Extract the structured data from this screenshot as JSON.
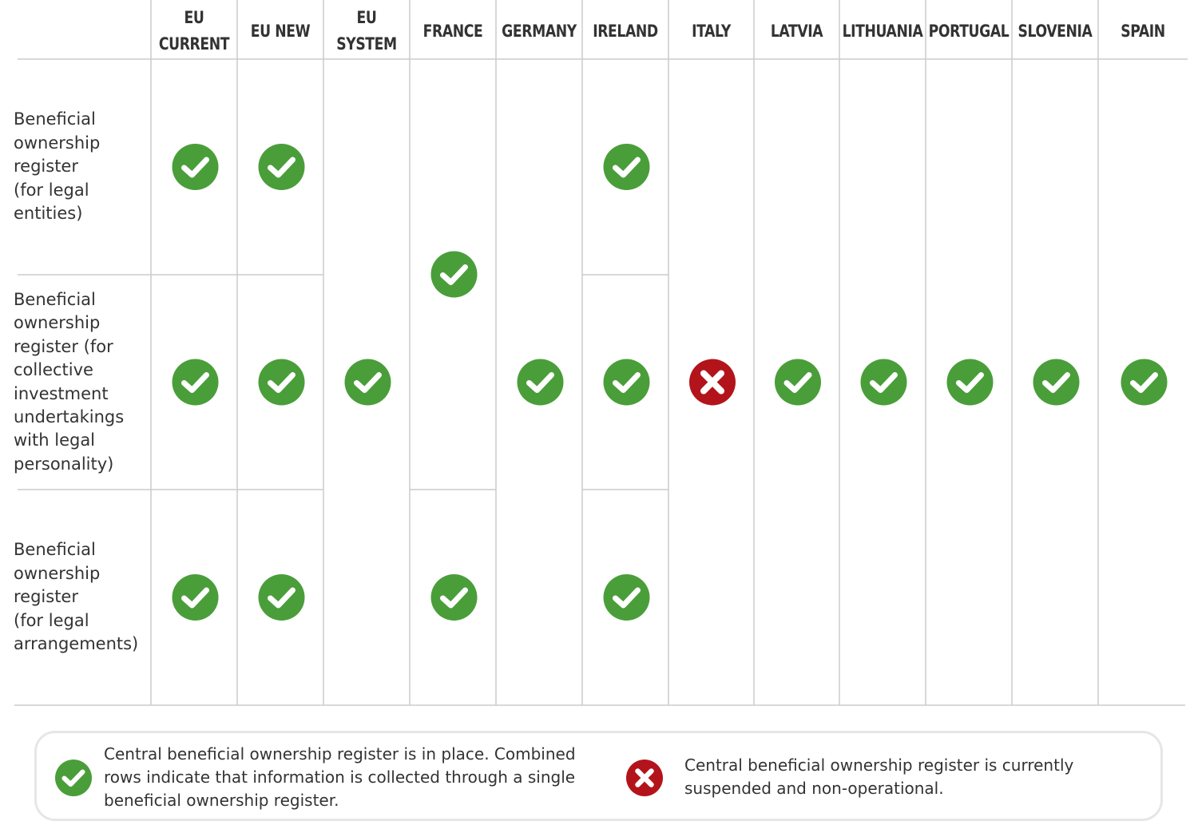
{
  "columns": [
    {
      "key": "eu_current",
      "label": "EU\nCURRENT"
    },
    {
      "key": "eu_new",
      "label": "EU NEW"
    },
    {
      "key": "eu_system",
      "label": "EU\nSYSTEM"
    },
    {
      "key": "france",
      "label": "FRANCE"
    },
    {
      "key": "germany",
      "label": "GERMANY"
    },
    {
      "key": "ireland",
      "label": "IRELAND"
    },
    {
      "key": "italy",
      "label": "ITALY"
    },
    {
      "key": "latvia",
      "label": "LATVIA"
    },
    {
      "key": "lithuania",
      "label": "LITHUANIA"
    },
    {
      "key": "portugal",
      "label": "PORTUGAL"
    },
    {
      "key": "slovenia",
      "label": "SLOVENIA"
    },
    {
      "key": "spain",
      "label": "SPAIN"
    }
  ],
  "rows": [
    {
      "key": "legal_entities",
      "label": "Beneficial\nownership\nregister\n(for legal\nentities)"
    },
    {
      "key": "collective_investment",
      "label": "Beneficial\nownership\nregister (for\ncollective\ninvestment\nundertakings\nwith legal\npersonality)"
    },
    {
      "key": "legal_arrangements",
      "label": "Beneficial\nownership\nregister\n(for legal\narrangements)"
    }
  ],
  "cells": [
    {
      "column": "eu_current",
      "rows": [
        "legal_entities"
      ],
      "status": "in-place"
    },
    {
      "column": "eu_current",
      "rows": [
        "collective_investment"
      ],
      "status": "in-place"
    },
    {
      "column": "eu_current",
      "rows": [
        "legal_arrangements"
      ],
      "status": "in-place"
    },
    {
      "column": "eu_new",
      "rows": [
        "legal_entities"
      ],
      "status": "in-place"
    },
    {
      "column": "eu_new",
      "rows": [
        "collective_investment"
      ],
      "status": "in-place"
    },
    {
      "column": "eu_new",
      "rows": [
        "legal_arrangements"
      ],
      "status": "in-place"
    },
    {
      "column": "eu_system",
      "rows": [
        "legal_entities",
        "collective_investment",
        "legal_arrangements"
      ],
      "status": "in-place"
    },
    {
      "column": "france",
      "rows": [
        "legal_entities",
        "collective_investment"
      ],
      "status": "in-place"
    },
    {
      "column": "france",
      "rows": [
        "legal_arrangements"
      ],
      "status": "in-place"
    },
    {
      "column": "germany",
      "rows": [
        "legal_entities",
        "collective_investment",
        "legal_arrangements"
      ],
      "status": "in-place"
    },
    {
      "column": "ireland",
      "rows": [
        "legal_entities"
      ],
      "status": "in-place"
    },
    {
      "column": "ireland",
      "rows": [
        "collective_investment"
      ],
      "status": "in-place"
    },
    {
      "column": "ireland",
      "rows": [
        "legal_arrangements"
      ],
      "status": "in-place"
    },
    {
      "column": "italy",
      "rows": [
        "legal_entities",
        "collective_investment",
        "legal_arrangements"
      ],
      "status": "suspended"
    },
    {
      "column": "latvia",
      "rows": [
        "legal_entities",
        "collective_investment",
        "legal_arrangements"
      ],
      "status": "in-place"
    },
    {
      "column": "lithuania",
      "rows": [
        "legal_entities",
        "collective_investment",
        "legal_arrangements"
      ],
      "status": "in-place"
    },
    {
      "column": "portugal",
      "rows": [
        "legal_entities",
        "collective_investment",
        "legal_arrangements"
      ],
      "status": "in-place"
    },
    {
      "column": "slovenia",
      "rows": [
        "legal_entities",
        "collective_investment",
        "legal_arrangements"
      ],
      "status": "in-place"
    },
    {
      "column": "spain",
      "rows": [
        "legal_entities",
        "collective_investment",
        "legal_arrangements"
      ],
      "status": "in-place"
    }
  ],
  "legend": {
    "in_place": "Central beneficial ownership register is in place. Combined\nrows indicate that information is collected through a single\nbeneficial ownership register.",
    "suspended": "Central beneficial ownership register is currently\nsuspended and non-operational."
  },
  "colors": {
    "in_place": "#4a9e3a",
    "suspended": "#b3141b",
    "gridline": "#cccccc",
    "text": "#333333"
  },
  "icons": {
    "in_place": "check-circle-icon",
    "suspended": "x-circle-icon"
  }
}
